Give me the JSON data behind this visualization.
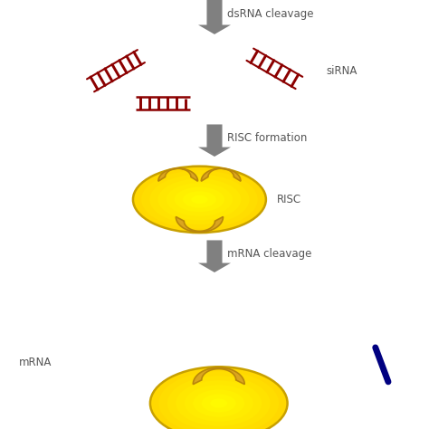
{
  "background_color": "#ffffff",
  "arrow_color": "#808080",
  "rna_color": "#8B0000",
  "risc_fill": "#FFE800",
  "risc_edge": "#C8A000",
  "crescent_fill": "#DAA520",
  "crescent_edge": "#B8860B",
  "text_color": "#555555",
  "label_siRNA": "siRNA",
  "label_RISC_formation": "RISC formation",
  "label_RISC": "RISC",
  "label_mRNA_cleavage": "mRNA cleavage",
  "label_mRNA": "mRNA",
  "label_dsRNA_cleavage": "dsRNA cleavage",
  "font_size": 8.5
}
